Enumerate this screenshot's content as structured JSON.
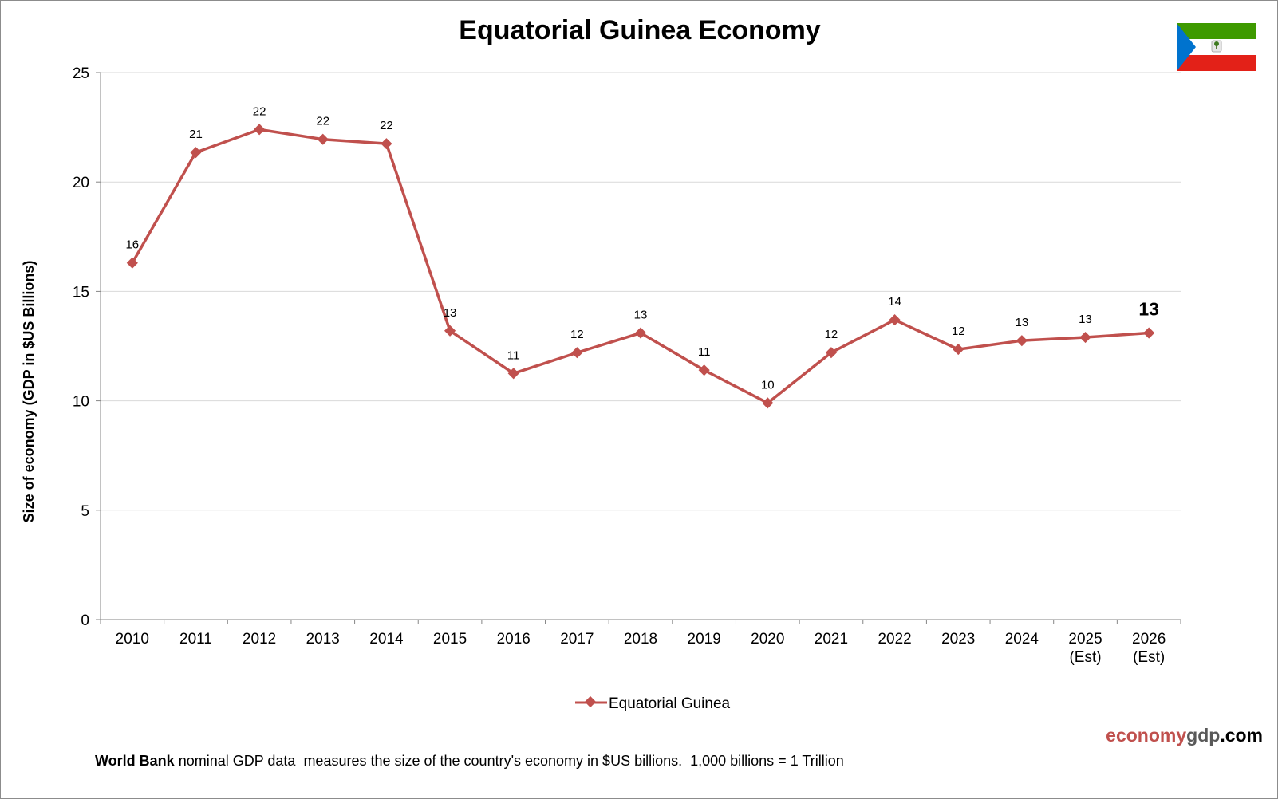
{
  "colors": {
    "series": "#c0504d",
    "grid": "#d9d9d9",
    "axis": "#868686",
    "brand_red": "#c0504d",
    "brand_gray": "#595959",
    "flag_green": "#3e9a00",
    "flag_white": "#ffffff",
    "flag_red": "#e32118",
    "flag_blue": "#0073ce"
  },
  "flag": {
    "icon": "equatorial-guinea-flag-icon"
  },
  "chart_data": {
    "type": "line",
    "title": "Equatorial Guinea Economy",
    "xlabel": "",
    "ylabel": "Size of economy (GDP in $US Billions)",
    "ylim": [
      0,
      25
    ],
    "yticks": [
      0,
      5,
      10,
      15,
      20,
      25
    ],
    "grid": true,
    "legend_position": "bottom",
    "categories": [
      [
        "2010"
      ],
      [
        "2011"
      ],
      [
        "2012"
      ],
      [
        "2013"
      ],
      [
        "2014"
      ],
      [
        "2015"
      ],
      [
        "2016"
      ],
      [
        "2017"
      ],
      [
        "2018"
      ],
      [
        "2019"
      ],
      [
        "2020"
      ],
      [
        "2021"
      ],
      [
        "2022"
      ],
      [
        "2023"
      ],
      [
        "2024"
      ],
      [
        "2025",
        "(Est)"
      ],
      [
        "2026",
        "(Est)"
      ]
    ],
    "series": [
      {
        "name": "Equatorial Guinea",
        "values": [
          16.3,
          21.35,
          22.4,
          21.95,
          21.75,
          13.2,
          11.25,
          12.2,
          13.1,
          11.4,
          9.9,
          12.2,
          13.7,
          12.35,
          12.75,
          12.9,
          13.1
        ],
        "labels": [
          "16",
          "21",
          "22",
          "22",
          "22",
          "13",
          "11",
          "12",
          "13",
          "11",
          "10",
          "12",
          "14",
          "12",
          "13",
          "13",
          "13"
        ]
      }
    ]
  },
  "branding": {
    "part1": "economy",
    "part2": "gdp",
    "part3": ".com"
  },
  "footnote": {
    "bold": "World Bank",
    "text": " nominal GDP data  measures the size of the country's economy in $US billions.  1,000 billions = 1 Trillion"
  }
}
